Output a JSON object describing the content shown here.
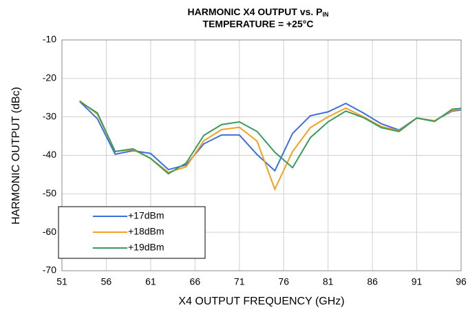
{
  "chart_data": {
    "type": "line",
    "title": "HARMONIC X4 OUTPUT vs. P",
    "title_subscript": "IN",
    "subtitle": "TEMPERATURE = +25°C",
    "x_label": "X4 OUTPUT FREQUENCY (GHz)",
    "y_label": "HARMONIC OUTPUT (dBc)",
    "x": [
      53,
      55,
      57,
      59,
      61,
      63,
      65,
      67,
      69,
      71,
      73,
      75,
      77,
      79,
      81,
      83,
      85,
      87,
      89,
      91,
      93,
      95,
      96
    ],
    "series": [
      {
        "name": "+17dBm",
        "color": "#3b6fe0",
        "values": [
          -26,
          -30.5,
          -39.7,
          -38.8,
          -39.5,
          -43.7,
          -42.5,
          -37,
          -34.7,
          -34.7,
          -39.8,
          -44,
          -34.3,
          -29.7,
          -28.7,
          -26.5,
          -29,
          -31.8,
          -33.4,
          -30.3,
          -31,
          -28.5,
          -28.2
        ]
      },
      {
        "name": "+18dBm",
        "color": "#f5a01e",
        "values": [
          -25.8,
          -29.3,
          -39,
          -38.5,
          -40.8,
          -44.4,
          -43,
          -36.2,
          -33.3,
          -32.7,
          -36.3,
          -48.8,
          -39,
          -32.8,
          -30,
          -27.7,
          -30,
          -32.5,
          -33.6,
          -30.3,
          -31,
          -28.3,
          -28
        ]
      },
      {
        "name": "+19dBm",
        "color": "#3a9a5c",
        "values": [
          -26,
          -29,
          -39,
          -38.3,
          -40.8,
          -44.8,
          -42,
          -34.8,
          -32,
          -31.3,
          -33.8,
          -39.2,
          -43.2,
          -35.4,
          -31.3,
          -28.5,
          -30.2,
          -32.8,
          -33.8,
          -30.3,
          -31.2,
          -28,
          -27.8
        ]
      }
    ],
    "xlim": [
      51,
      96
    ],
    "xticks": [
      51,
      56,
      61,
      66,
      71,
      76,
      81,
      86,
      91,
      96
    ],
    "ylim": [
      -70,
      -10
    ],
    "yticks": [
      -70,
      -60,
      -50,
      -40,
      -30,
      -20,
      -10
    ],
    "grid": true,
    "legend": "lower left"
  }
}
